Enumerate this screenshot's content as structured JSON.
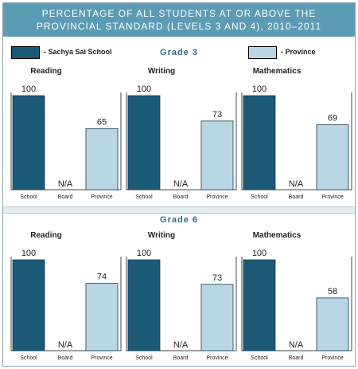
{
  "header": {
    "line1": "PERCENTAGE OF ALL STUDENTS AT OR ABOVE THE",
    "line2": "PROVINCIAL STANDARD (LEVELS 3 AND 4), 2010–2011"
  },
  "legend": [
    {
      "label": "- Sachya Sai School",
      "color": "#1b5a76"
    },
    {
      "label": "- Province",
      "color": "#b9d6e4"
    }
  ],
  "colors": {
    "school": "#1b5a76",
    "province": "#b9d6e4",
    "accent": "#5b9bb4"
  },
  "chart_data": [
    {
      "type": "bar",
      "grade": "Grade 3",
      "title": "Reading",
      "categories": [
        "School",
        "Board",
        "Province"
      ],
      "values": [
        100,
        null,
        65
      ],
      "labels": [
        "100",
        "N/A",
        "65"
      ],
      "ylim": [
        0,
        100
      ]
    },
    {
      "type": "bar",
      "grade": "Grade 3",
      "title": "Writing",
      "categories": [
        "School",
        "Board",
        "Province"
      ],
      "values": [
        100,
        null,
        73
      ],
      "labels": [
        "100",
        "N/A",
        "73"
      ],
      "ylim": [
        0,
        100
      ]
    },
    {
      "type": "bar",
      "grade": "Grade 3",
      "title": "Mathematics",
      "categories": [
        "School",
        "Board",
        "Province"
      ],
      "values": [
        100,
        null,
        69
      ],
      "labels": [
        "100",
        "N/A",
        "69"
      ],
      "ylim": [
        0,
        100
      ]
    },
    {
      "type": "bar",
      "grade": "Grade 6",
      "title": "Reading",
      "categories": [
        "School",
        "Board",
        "Province"
      ],
      "values": [
        100,
        null,
        74
      ],
      "labels": [
        "100",
        "N/A",
        "74"
      ],
      "ylim": [
        0,
        100
      ]
    },
    {
      "type": "bar",
      "grade": "Grade 6",
      "title": "Writing",
      "categories": [
        "School",
        "Board",
        "Province"
      ],
      "values": [
        100,
        null,
        73
      ],
      "labels": [
        "100",
        "N/A",
        "73"
      ],
      "ylim": [
        0,
        100
      ]
    },
    {
      "type": "bar",
      "grade": "Grade 6",
      "title": "Mathematics",
      "categories": [
        "School",
        "Board",
        "Province"
      ],
      "values": [
        100,
        null,
        58
      ],
      "labels": [
        "100",
        "N/A",
        "58"
      ],
      "ylim": [
        0,
        100
      ]
    }
  ]
}
